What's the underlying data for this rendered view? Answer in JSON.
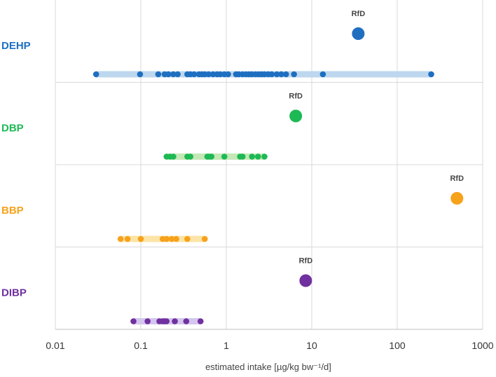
{
  "chart_data": {
    "type": "scatter",
    "title": "",
    "xlabel": "estimated intake [µg/kg bw⁻¹/d]",
    "ylabel": "",
    "xscale": "log",
    "xlim": [
      0.01,
      1000
    ],
    "grid": "vertical",
    "x_ticks": [
      "0.01",
      "0.1",
      "1",
      "10",
      "100",
      "1000"
    ],
    "rfd_label": "RfD",
    "series": [
      {
        "name": "DEHP",
        "color": "#1f6fc0",
        "range_color": "#bdd7ee",
        "rfd": 35,
        "range": [
          0.03,
          250
        ],
        "values": [
          0.03,
          0.098,
          0.16,
          0.19,
          0.21,
          0.24,
          0.27,
          0.35,
          0.38,
          0.42,
          0.48,
          0.52,
          0.56,
          0.62,
          0.7,
          0.78,
          0.85,
          0.95,
          1.05,
          1.3,
          1.4,
          1.55,
          1.7,
          1.85,
          2.0,
          2.2,
          2.4,
          2.6,
          2.8,
          3.1,
          3.4,
          3.9,
          4.4,
          5.0,
          6.2,
          13.5,
          250
        ]
      },
      {
        "name": "DBP",
        "color": "#1db954",
        "range_color": "#c5e8b7",
        "rfd": 6.5,
        "range": [
          0.2,
          2.8
        ],
        "values": [
          0.2,
          0.22,
          0.24,
          0.35,
          0.38,
          0.6,
          0.63,
          0.67,
          0.95,
          1.45,
          1.55,
          2.0,
          2.35,
          2.8
        ]
      },
      {
        "name": "BBP",
        "color": "#f7a21b",
        "range_color": "#fce4a8",
        "rfd": 500,
        "range": [
          0.058,
          0.56
        ],
        "values": [
          0.058,
          0.07,
          0.1,
          0.18,
          0.2,
          0.23,
          0.26,
          0.35,
          0.56
        ]
      },
      {
        "name": "DIBP",
        "color": "#7030a0",
        "range_color": "#d4c6ee",
        "rfd": 8.5,
        "range": [
          0.082,
          0.5
        ],
        "values": [
          0.082,
          0.12,
          0.165,
          0.18,
          0.19,
          0.2,
          0.25,
          0.34,
          0.5
        ]
      }
    ]
  }
}
